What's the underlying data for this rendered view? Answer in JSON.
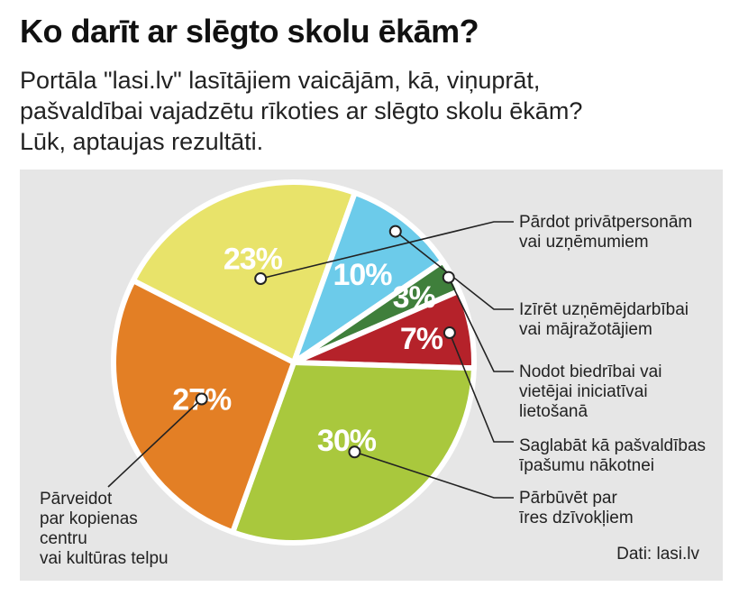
{
  "header": {
    "title": "Ko darīt ar slēgto skolu ēkām?",
    "subtitle_lines": [
      "Portāla \"lasi.lv\" lasītājiem vaicājām, kā, viņuprāt,",
      "pašvaldībai vajadzētu rīkoties ar slēgto skolu ēkām?",
      "Lūk, aptaujas rezultāti."
    ]
  },
  "source": "Dati: lasi.lv",
  "chart_data": {
    "type": "pie",
    "title": "Ko darīt ar slēgto skolu ēkām?",
    "start_angle_deg": -153,
    "slices": [
      {
        "label_lines": [
          "Pārdot privātpersonām",
          "vai uzņēmumiem"
        ],
        "value": 23,
        "display": "23%",
        "color": "#e8e36a"
      },
      {
        "label_lines": [
          "Izīrēt uzņēmējdarbībai",
          "vai mājražotājiem"
        ],
        "value": 10,
        "display": "10%",
        "color": "#6ccbea"
      },
      {
        "label_lines": [
          "Nodot biedrībai vai",
          "vietējai iniciatīvai",
          "lietošanā"
        ],
        "value": 3,
        "display": "3%",
        "color": "#3f7f3b"
      },
      {
        "label_lines": [
          "Saglabāt kā pašvaldības",
          "īpašumu nākotnei"
        ],
        "value": 7,
        "display": "7%",
        "color": "#b5222a"
      },
      {
        "label_lines": [
          "Pārbūvēt par",
          "īres dzīvokļiem"
        ],
        "value": 30,
        "display": "30%",
        "color": "#a9c83d"
      },
      {
        "label_lines": [
          "Pārveidot",
          "par kopienas",
          "centru",
          "vai kultūras telpu"
        ],
        "value": 27,
        "display": "27%",
        "color": "#e37f25"
      }
    ]
  }
}
